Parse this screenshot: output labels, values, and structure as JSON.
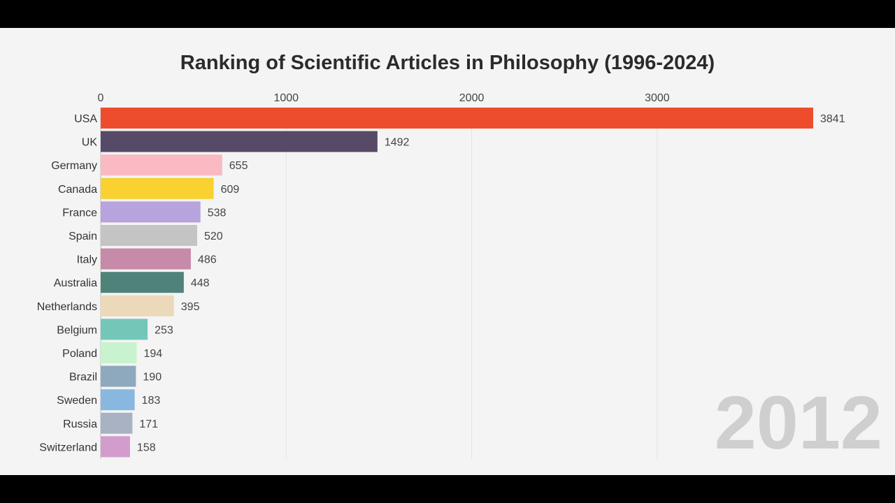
{
  "chart_data": {
    "type": "bar",
    "orientation": "horizontal",
    "title": "Ranking of Scientific Articles in Philosophy (1996-2024)",
    "period_label": "2012",
    "xlim": [
      0,
      3841
    ],
    "x_ticks": [
      0,
      1000,
      2000,
      3000
    ],
    "grid": true,
    "categories": [
      "USA",
      "UK",
      "Germany",
      "Canada",
      "France",
      "Spain",
      "Italy",
      "Australia",
      "Netherlands",
      "Belgium",
      "Poland",
      "Brazil",
      "Sweden",
      "Russia",
      "Switzerland"
    ],
    "values": [
      3841,
      1492,
      655,
      609,
      538,
      520,
      486,
      448,
      395,
      253,
      194,
      190,
      183,
      171,
      158
    ],
    "colors": [
      "#ee4d2d",
      "#564a66",
      "#f9bac4",
      "#f9d130",
      "#b7a3dd",
      "#c4c4c4",
      "#c78aa9",
      "#4f837a",
      "#ecd9b9",
      "#73c7b8",
      "#c9f3ce",
      "#8ea8bd",
      "#88b8df",
      "#a9b2c2",
      "#d29ccc"
    ]
  }
}
